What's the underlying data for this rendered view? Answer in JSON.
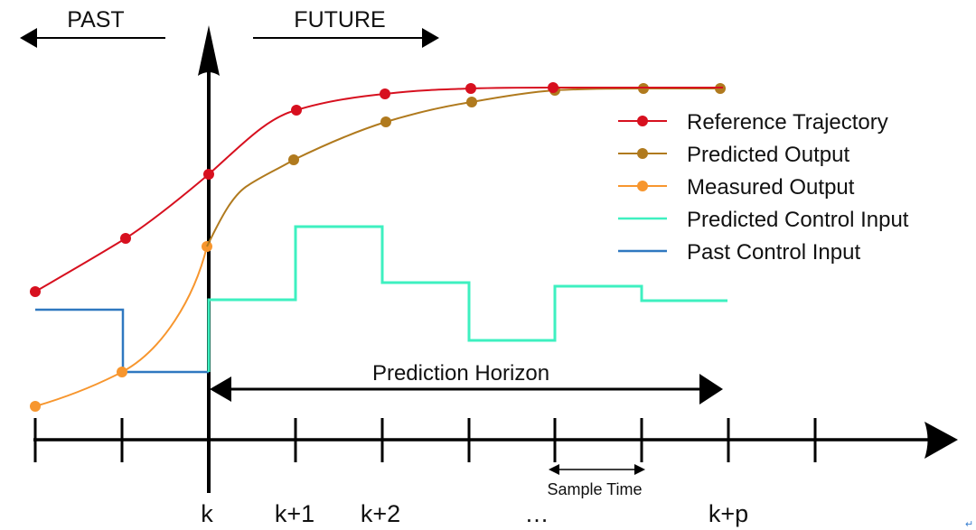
{
  "labels": {
    "past": "PAST",
    "future": "FUTURE",
    "prediction_horizon": "Prediction Horizon",
    "sample_time": "Sample Time",
    "tick_k": "k",
    "tick_k1": "k+1",
    "tick_k2": "k+2",
    "tick_dots": "…",
    "tick_kp": "k+p",
    "return_mark": "↵"
  },
  "legend": [
    {
      "label": "Reference Trajectory",
      "color": "#d7101f",
      "marker": true
    },
    {
      "label": "Predicted Output",
      "color": "#b07a1e",
      "marker": true
    },
    {
      "label": "Measured Output",
      "color": "#f7962e",
      "marker": true
    },
    {
      "label": "Predicted Control Input",
      "color": "#3ef0c0",
      "marker": false
    },
    {
      "label": "Past Control Input",
      "color": "#2f78c0",
      "marker": false
    }
  ]
}
